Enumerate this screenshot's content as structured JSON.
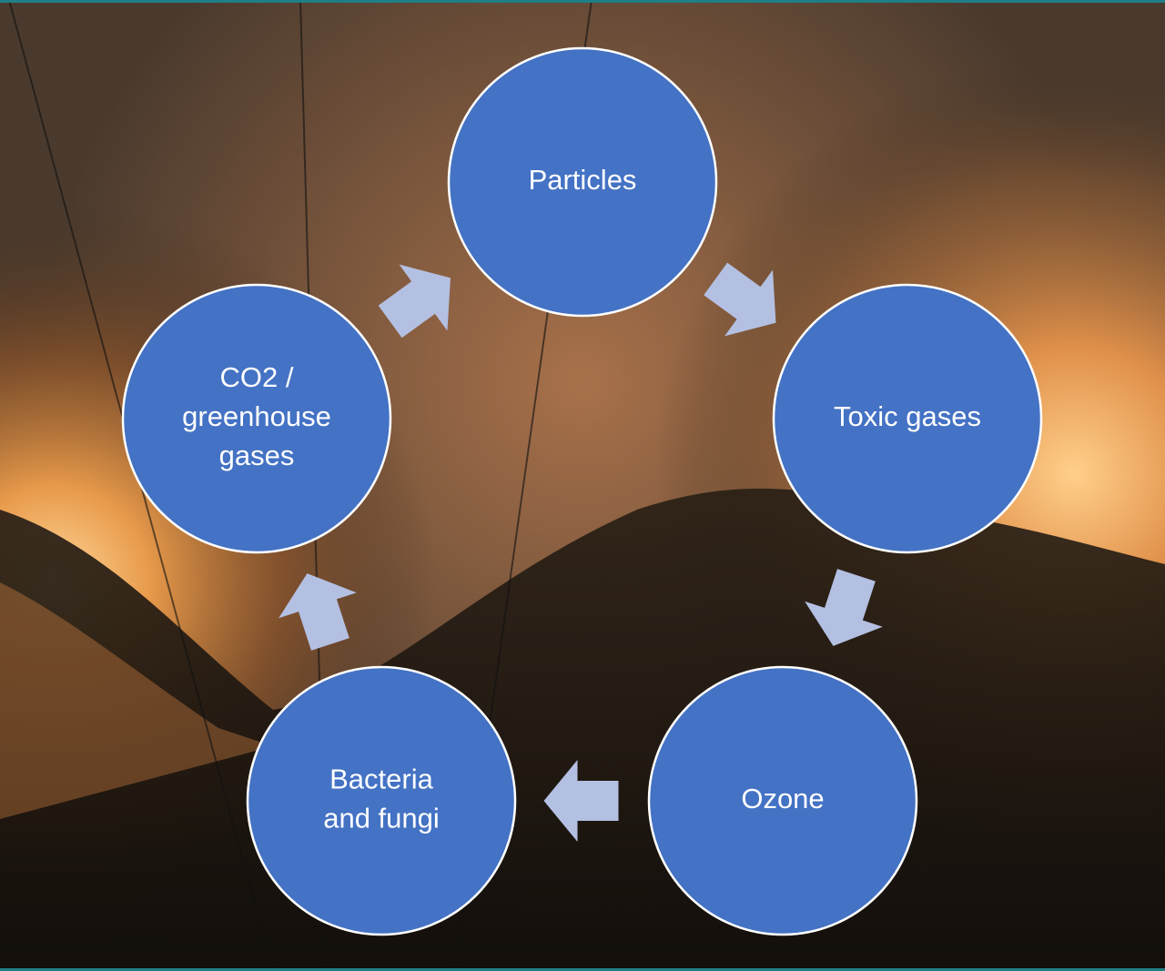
{
  "nodes": [
    {
      "lines": [
        "Particles"
      ]
    },
    {
      "lines": [
        "Toxic gases"
      ]
    },
    {
      "lines": [
        "Ozone"
      ]
    },
    {
      "lines": [
        "Bacteria",
        "and fungi"
      ]
    },
    {
      "lines": [
        "CO2 /",
        "greenhouse",
        "gases"
      ]
    }
  ]
}
